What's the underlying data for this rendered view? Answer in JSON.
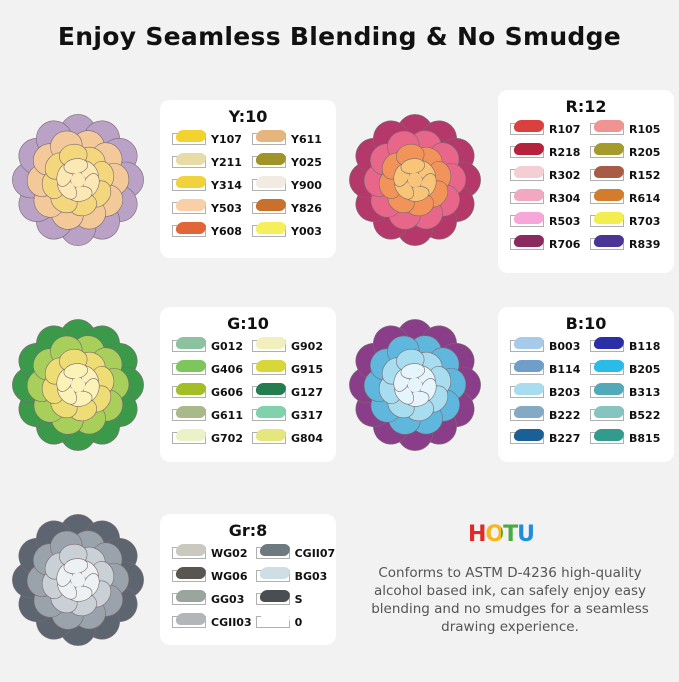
{
  "title": "Enjoy Seamless Blending & No Smudge",
  "brand": {
    "name": "HOTU",
    "letters": [
      {
        "c": "H",
        "color": "#e02a26"
      },
      {
        "c": "O",
        "color": "#f6b81a"
      },
      {
        "c": "T",
        "color": "#49a942"
      },
      {
        "c": "U",
        "color": "#1f8fdc"
      }
    ]
  },
  "description": "Conforms to ASTM D-4236 high-quality alcohol based ink, can safely enjoy easy blending and no smudges for a seamless drawing experience.",
  "panels": [
    {
      "id": "y",
      "title": "Y:10",
      "flower": [
        "#b9a2c6",
        "#f3c99a",
        "#f4d77c",
        "#fbe8b4"
      ],
      "swatches": [
        [
          "Y107",
          "#f2d22e"
        ],
        [
          "Y611",
          "#e6b57e"
        ],
        [
          "Y211",
          "#e7dba6"
        ],
        [
          "Y025",
          "#a09428"
        ],
        [
          "Y314",
          "#f0d33c"
        ],
        [
          "Y900",
          "#f1ebe2"
        ],
        [
          "Y503",
          "#f9cfa8"
        ],
        [
          "Y826",
          "#c8702c"
        ],
        [
          "Y608",
          "#e2653a"
        ],
        [
          "Y003",
          "#f4ef5a"
        ]
      ]
    },
    {
      "id": "r",
      "title": "R:12",
      "flower": [
        "#b4386a",
        "#e7668a",
        "#f2945a",
        "#f7c478"
      ],
      "swatches": [
        [
          "R107",
          "#d9403e"
        ],
        [
          "R105",
          "#ef9393"
        ],
        [
          "R218",
          "#b4233b"
        ],
        [
          "R205",
          "#a59a2c"
        ],
        [
          "R302",
          "#f3cfd4"
        ],
        [
          "R152",
          "#a85c48"
        ],
        [
          "R304",
          "#f1a9c2"
        ],
        [
          "R614",
          "#d27d2c"
        ],
        [
          "R503",
          "#f7a6da"
        ],
        [
          "R703",
          "#f3ee50"
        ],
        [
          "R706",
          "#8a2a5f"
        ],
        [
          "R839",
          "#4a3596"
        ]
      ]
    },
    {
      "id": "g",
      "title": "G:10",
      "flower": [
        "#3a9a4a",
        "#a7cf5a",
        "#eedc74",
        "#fbf2b8"
      ],
      "swatches": [
        [
          "G012",
          "#8cc2a0"
        ],
        [
          "G902",
          "#f1efbd"
        ],
        [
          "G406",
          "#7cc65c"
        ],
        [
          "G915",
          "#d9d63a"
        ],
        [
          "G606",
          "#a4be26"
        ],
        [
          "G127",
          "#237d4e"
        ],
        [
          "G611",
          "#a9b98a"
        ],
        [
          "G317",
          "#7fd2ac"
        ],
        [
          "G702",
          "#ebf2c8"
        ],
        [
          "G804",
          "#e6e67e"
        ]
      ]
    },
    {
      "id": "b",
      "title": "B:10",
      "flower": [
        "#8a3e8a",
        "#5fb7de",
        "#a8dcef",
        "#e6f4fb"
      ],
      "swatches": [
        [
          "B003",
          "#a7c9ea"
        ],
        [
          "B118",
          "#2b2fa6"
        ],
        [
          "B114",
          "#6e9ec9"
        ],
        [
          "B205",
          "#2bbbe8"
        ],
        [
          "B203",
          "#a8dcef"
        ],
        [
          "B313",
          "#52aab8"
        ],
        [
          "B222",
          "#84a9c4"
        ],
        [
          "B522",
          "#86c4c0"
        ],
        [
          "B227",
          "#1a5f96"
        ],
        [
          "B815",
          "#339b8e"
        ]
      ]
    },
    {
      "id": "gr",
      "title": "Gr:8",
      "flower": [
        "#5d6670",
        "#9aa3ab",
        "#c9d0d6",
        "#eef1f3"
      ],
      "swatches": [
        [
          "WG02",
          "#cbc8c0"
        ],
        [
          "CGII07",
          "#6d7a80"
        ],
        [
          "WG06",
          "#575650"
        ],
        [
          "BG03",
          "#cfdde6"
        ],
        [
          "GG03",
          "#9aa59d"
        ],
        [
          "S",
          "#4a4e52"
        ],
        [
          "CGII03",
          "#b2b6b8"
        ],
        [
          "0",
          "#ffffff"
        ]
      ]
    }
  ]
}
